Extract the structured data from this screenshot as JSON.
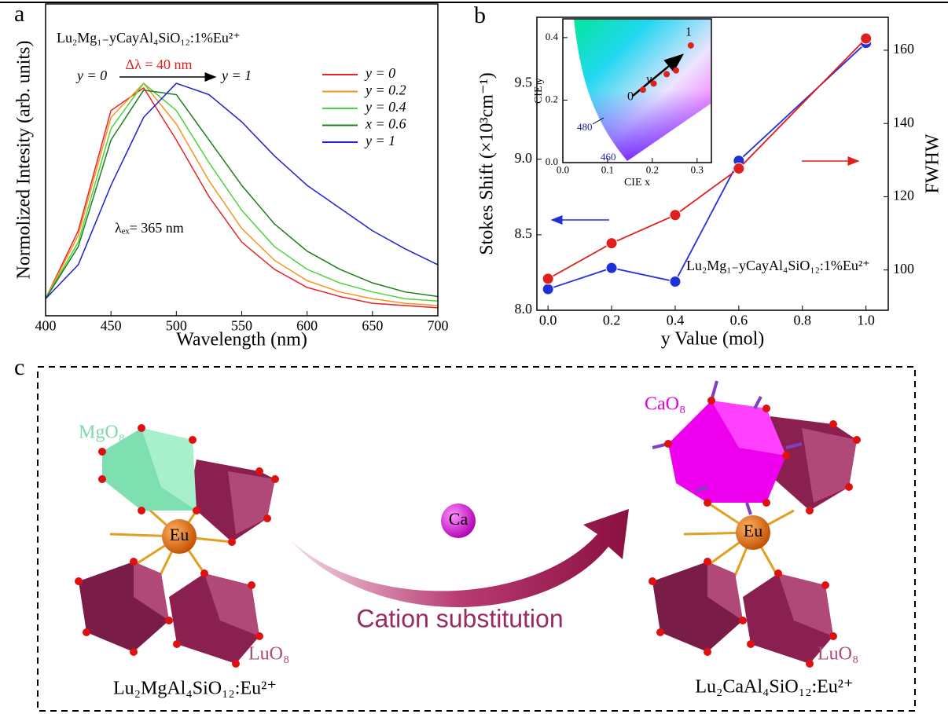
{
  "chart_data": [
    {
      "type": "line",
      "label": "a",
      "xlabel": "Wavelength (nm)",
      "ylabel": "Normolized Intesity (arb. units)",
      "x": [
        400,
        425,
        450,
        475,
        500,
        525,
        550,
        575,
        600,
        625,
        650,
        675,
        700
      ],
      "series": [
        {
          "name": "y = 0",
          "color": "#e8232a",
          "values": [
            0.05,
            0.35,
            0.88,
            0.98,
            0.75,
            0.5,
            0.3,
            0.18,
            0.1,
            0.06,
            0.03,
            0.02,
            0.01
          ]
        },
        {
          "name": "y = 0.2",
          "color": "#f7941d",
          "values": [
            0.05,
            0.33,
            0.85,
            1.0,
            0.82,
            0.57,
            0.36,
            0.22,
            0.13,
            0.08,
            0.05,
            0.03,
            0.02
          ]
        },
        {
          "name": "y = 0.4",
          "color": "#4cd43c",
          "values": [
            0.05,
            0.3,
            0.8,
            1.0,
            0.88,
            0.65,
            0.44,
            0.28,
            0.18,
            0.12,
            0.08,
            0.05,
            0.04
          ]
        },
        {
          "name": "x = 0.6",
          "color": "#1e7d1e",
          "values": [
            0.05,
            0.28,
            0.75,
            0.97,
            0.95,
            0.75,
            0.55,
            0.38,
            0.26,
            0.18,
            0.12,
            0.08,
            0.06
          ]
        },
        {
          "name": "y = 1",
          "color": "#2020d0",
          "values": [
            0.05,
            0.2,
            0.55,
            0.85,
            1.0,
            0.95,
            0.83,
            0.68,
            0.55,
            0.45,
            0.35,
            0.27,
            0.2
          ]
        }
      ],
      "xlim": [
        400,
        700
      ],
      "xticks": [
        400,
        450,
        500,
        550,
        600,
        650,
        700
      ],
      "ylim": [
        -0.025,
        1.35
      ],
      "legend": "upper right",
      "annotations": {
        "formula": "Lu₂Mg₁₋yCayAl₄SiO₁₂:1%Eu²⁺",
        "shift": "Δλ = 40 nm",
        "start": "y = 0",
        "end": "y = 1",
        "excitation": "λₑₓ= 365 nm"
      }
    },
    {
      "type": "line",
      "label": "b",
      "markers": true,
      "xlabel": "y Value (mol)",
      "ylabel": "Stokes Shift (×10³cm⁻¹)",
      "y2label": "FWHW",
      "x": [
        0,
        0.2,
        0.4,
        0.6,
        1.0
      ],
      "series": [
        {
          "color": "#2030d8",
          "values": [
            8.14,
            8.28,
            8.19,
            8.99,
            9.77
          ]
        },
        {
          "color": "#e0201c",
          "axis": "y2",
          "values": [
            97.6,
            107.3,
            115,
            127.7,
            163.2
          ]
        }
      ],
      "xlim": [
        -0.035,
        1.07
      ],
      "xticks": [
        {
          "value": 0,
          "label": "0.0"
        },
        0.2,
        0.4,
        0.6,
        0.8,
        {
          "value": 1,
          "label": "1.0"
        }
      ],
      "ylim": [
        8.0,
        9.94
      ],
      "yticks": [
        {
          "value": 8,
          "label": "8.0"
        },
        8.5,
        {
          "value": 9,
          "label": "9.0"
        },
        9.5
      ],
      "y2lim": [
        89,
        169
      ],
      "y2ticks": [
        100,
        120,
        140,
        160
      ],
      "annotations": {
        "formula": "Lu₂Mg₁₋yCayAl₄SiO₁₂:1%Eu²⁺"
      }
    },
    {
      "type": "scatter",
      "xlabel": "CIE x",
      "ylabel": "CIE y",
      "color": "#e0201c",
      "x": [
        0.179,
        0.203,
        0.232,
        0.253,
        0.286
      ],
      "values": [
        0.233,
        0.253,
        0.283,
        0.295,
        0.375
      ],
      "xlim": [
        0,
        0.332
      ],
      "xticks": [
        {
          "value": 0,
          "label": "0.0"
        },
        0.1,
        0.2,
        0.3
      ],
      "ylim": [
        0,
        0.46
      ],
      "yticks": [
        {
          "value": 0,
          "label": "0.0"
        },
        0.2,
        0.4
      ],
      "annotations": {
        "w480": "480",
        "w460": "460",
        "start": "0",
        "dir": "y",
        "end": "1"
      }
    }
  ],
  "diagram": {
    "label": "c",
    "left": {
      "top": "MgO₈",
      "bottom": "LuO₈",
      "center": "Eu",
      "formula": "Lu₂MgAl₄SiO₁₂:Eu²⁺"
    },
    "dopant": "Ca",
    "process": "Cation substitution",
    "right": {
      "top": "CaO₈",
      "bottom": "LuO₈",
      "center": "Eu",
      "formula": "Lu₂CaAl₄SiO₁₂:Eu²⁺"
    }
  }
}
